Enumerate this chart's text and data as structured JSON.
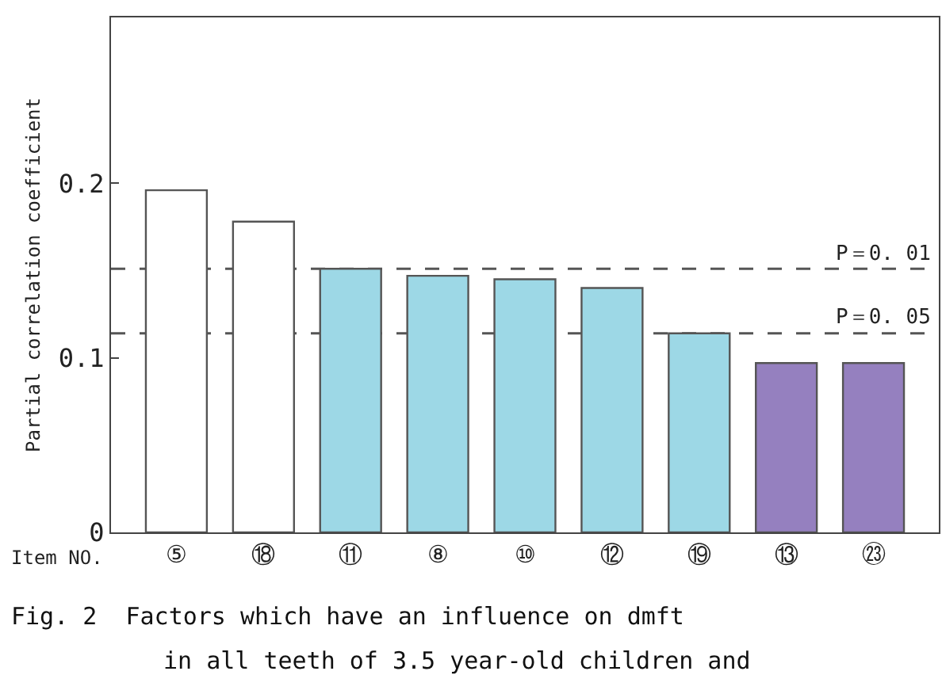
{
  "chart_data": {
    "type": "bar",
    "categories": [
      "⑤",
      "⑱",
      "⑪",
      "⑧",
      "⑩",
      "⑫",
      "⑲",
      "⑬",
      "㉓"
    ],
    "values": [
      0.196,
      0.178,
      0.151,
      0.147,
      0.145,
      0.14,
      0.114,
      0.097,
      0.097
    ],
    "colors": [
      "#ffffff",
      "#ffffff",
      "#9dd8e6",
      "#9dd8e6",
      "#9dd8e6",
      "#9dd8e6",
      "#9dd8e6",
      "#9580bf",
      "#9580bf"
    ],
    "ylabel": "Partial correlation coefficient",
    "xlabel": "Item NO.",
    "ylim": [
      0,
      0.295
    ],
    "yticks": [
      0,
      0.1,
      0.2
    ],
    "ref_lines": [
      {
        "axis": "y",
        "value": 0.151,
        "label": "P＝0. 01",
        "color": "#555555",
        "line_style": "dashed"
      },
      {
        "axis": "y",
        "value": 0.114,
        "label": "P＝0. 05",
        "color": "#555555",
        "line_style": "dashed"
      }
    ],
    "annotations": [
      "Fig. 2  Factors which have an influence on dmft",
      "in all teeth of 3.5 year-old children and"
    ],
    "grid": false
  }
}
